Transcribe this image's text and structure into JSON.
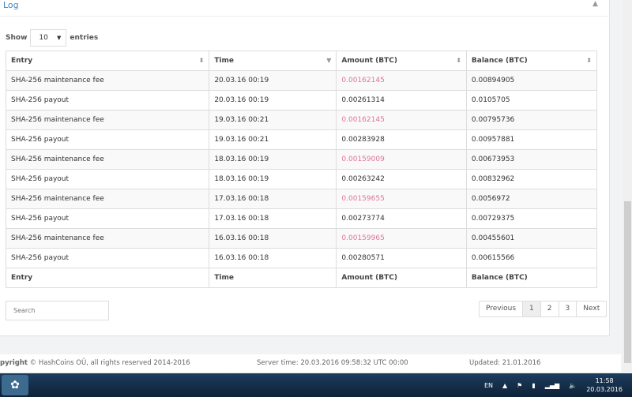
{
  "panel": {
    "title": "Log"
  },
  "length": {
    "show": "Show",
    "value": "10",
    "entries": "entries"
  },
  "table": {
    "headers": [
      "Entry",
      "Time",
      "Amount (BTC)",
      "Balance (BTC)"
    ],
    "rows": [
      [
        "SHA-256 maintenance fee",
        "20.03.16 00:19",
        "0.00162145",
        "0.00894905"
      ],
      [
        "SHA-256 payout",
        "20.03.16 00:19",
        "0.00261314",
        "0.0105705"
      ],
      [
        "SHA-256 maintenance fee",
        "19.03.16 00:21",
        "0.00162145",
        "0.00795736"
      ],
      [
        "SHA-256 payout",
        "19.03.16 00:21",
        "0.00283928",
        "0.00957881"
      ],
      [
        "SHA-256 maintenance fee",
        "18.03.16 00:19",
        "0.00159009",
        "0.00673953"
      ],
      [
        "SHA-256 payout",
        "18.03.16 00:19",
        "0.00263242",
        "0.00832962"
      ],
      [
        "SHA-256 maintenance fee",
        "17.03.16 00:18",
        "0.00159655",
        "0.0056972"
      ],
      [
        "SHA-256 payout",
        "17.03.16 00:18",
        "0.00273774",
        "0.00729375"
      ],
      [
        "SHA-256 maintenance fee",
        "16.03.16 00:18",
        "0.00159965",
        "0.00455601"
      ],
      [
        "SHA-256 payout",
        "16.03.16 00:18",
        "0.00280571",
        "0.00615566"
      ]
    ]
  },
  "search": {
    "placeholder": "Search"
  },
  "pagination": {
    "previous": "Previous",
    "pages": [
      "1",
      "2",
      "3"
    ],
    "next": "Next",
    "current": "1"
  },
  "footer": {
    "copyright_bold": "pyright",
    "copyright": "© HashCoins OÜ, all rights reserved 2014-2016",
    "server_time": "Server time: 20.03.2016 09:58:32 UTC 00:00",
    "updated": "Updated: 21.01.2016"
  },
  "taskbar": {
    "lang": "EN",
    "time": "11:58",
    "date": "20.03.2016"
  },
  "colors": {
    "negative": "#e0749c",
    "link": "#3a87c8"
  }
}
